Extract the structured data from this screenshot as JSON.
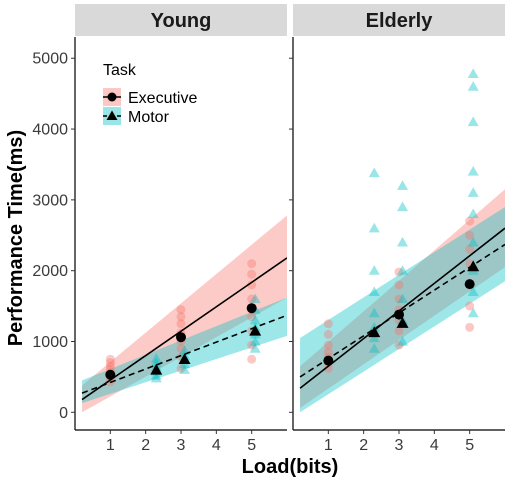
{
  "chart_data": {
    "type": "scatter",
    "x_label": "Load(bits)",
    "y_label": "Performance Time(ms)",
    "x_ticks": [
      1,
      2,
      3,
      4,
      5
    ],
    "y_ticks": [
      0,
      1000,
      2000,
      3000,
      4000,
      5000
    ],
    "x_range": [
      0,
      6
    ],
    "y_range": [
      -250,
      5300
    ],
    "legend": {
      "title": "Task",
      "position": "top-left",
      "entries": [
        {
          "label": "Executive",
          "shape": "circle",
          "color": "#F8766D"
        },
        {
          "label": "Motor",
          "shape": "triangle",
          "color": "#00BFC4"
        }
      ]
    },
    "panels": [
      {
        "label": "Young",
        "series": [
          {
            "name": "Executive",
            "means": [
              [
                1,
                530
              ],
              [
                3,
                1060
              ],
              [
                5,
                1470
              ]
            ],
            "fit_line": [
              [
                0.2,
                180
              ],
              [
                6,
                2180
              ]
            ],
            "ci_band": {
              "x": [
                0.2,
                6
              ],
              "upper": [
                380,
                2780
              ],
              "lower": [
                0,
                1620
              ]
            },
            "raw_points": [
              [
                1,
                430
              ],
              [
                1,
                480
              ],
              [
                1,
                520
              ],
              [
                1,
                560
              ],
              [
                1,
                600
              ],
              [
                1,
                650
              ],
              [
                1,
                700
              ],
              [
                1,
                750
              ],
              [
                3,
                620
              ],
              [
                3,
                780
              ],
              [
                3,
                900
              ],
              [
                3,
                1000
              ],
              [
                3,
                1120
              ],
              [
                3,
                1250
              ],
              [
                3,
                1350
              ],
              [
                3,
                1450
              ],
              [
                5,
                750
              ],
              [
                5,
                950
              ],
              [
                5,
                1150
              ],
              [
                5,
                1350
              ],
              [
                5,
                1600
              ],
              [
                5,
                1800
              ],
              [
                5,
                1950
              ],
              [
                5,
                2100
              ]
            ]
          },
          {
            "name": "Motor",
            "means": [
              [
                2.3,
                600
              ],
              [
                3.1,
                750
              ],
              [
                5.1,
                1150
              ]
            ],
            "fit_line": [
              [
                0.2,
                270
              ],
              [
                6,
                1370
              ]
            ],
            "ci_band": {
              "x": [
                0.2,
                6
              ],
              "upper": [
                450,
                1620
              ],
              "lower": [
                130,
                1080
              ]
            },
            "raw_points": [
              [
                2.3,
                480
              ],
              [
                2.3,
                520
              ],
              [
                2.3,
                580
              ],
              [
                2.3,
                640
              ],
              [
                2.3,
                700
              ],
              [
                2.3,
                760
              ],
              [
                3.1,
                600
              ],
              [
                3.1,
                680
              ],
              [
                3.1,
                740
              ],
              [
                3.1,
                800
              ],
              [
                3.1,
                870
              ],
              [
                5.1,
                900
              ],
              [
                5.1,
                1000
              ],
              [
                5.1,
                1100
              ],
              [
                5.1,
                1200
              ],
              [
                5.1,
                1300
              ],
              [
                5.1,
                1450
              ],
              [
                5.1,
                1600
              ]
            ]
          }
        ]
      },
      {
        "label": "Elderly",
        "series": [
          {
            "name": "Executive",
            "means": [
              [
                1,
                730
              ],
              [
                3,
                1380
              ],
              [
                5,
                1810
              ]
            ],
            "fit_line": [
              [
                0.2,
                340
              ],
              [
                6,
                2600
              ]
            ],
            "ci_band": {
              "x": [
                0.2,
                6
              ],
              "upper": [
                650,
                3150
              ],
              "lower": [
                60,
                2050
              ]
            },
            "raw_points": [
              [
                1,
                620
              ],
              [
                1,
                700
              ],
              [
                1,
                780
              ],
              [
                1,
                850
              ],
              [
                1,
                950
              ],
              [
                1,
                1100
              ],
              [
                1,
                1250
              ],
              [
                3,
                950
              ],
              [
                3,
                1150
              ],
              [
                3,
                1300
              ],
              [
                3,
                1450
              ],
              [
                3,
                1600
              ],
              [
                3,
                1800
              ],
              [
                3,
                1980
              ],
              [
                5,
                1200
              ],
              [
                5,
                1500
              ],
              [
                5,
                1800
              ],
              [
                5,
                2100
              ],
              [
                5,
                2300
              ],
              [
                5,
                2500
              ],
              [
                5,
                2700
              ]
            ]
          },
          {
            "name": "Motor",
            "means": [
              [
                2.3,
                1130
              ],
              [
                3.1,
                1260
              ],
              [
                5.1,
                2060
              ]
            ],
            "fit_line": [
              [
                0.2,
                500
              ],
              [
                6,
                2370
              ]
            ],
            "ci_band": {
              "x": [
                0.2,
                6
              ],
              "upper": [
                1050,
                2900
              ],
              "lower": [
                0,
                1850
              ]
            },
            "raw_points": [
              [
                2.3,
                900
              ],
              [
                2.3,
                1050
              ],
              [
                2.3,
                1200
              ],
              [
                2.3,
                1400
              ],
              [
                2.3,
                1700
              ],
              [
                2.3,
                2000
              ],
              [
                2.3,
                2600
              ],
              [
                2.3,
                3380
              ],
              [
                3.1,
                1000
              ],
              [
                3.1,
                1300
              ],
              [
                3.1,
                1600
              ],
              [
                3.1,
                2000
              ],
              [
                3.1,
                2400
              ],
              [
                3.1,
                2900
              ],
              [
                3.1,
                3200
              ],
              [
                5.1,
                1400
              ],
              [
                5.1,
                1700
              ],
              [
                5.1,
                2000
              ],
              [
                5.1,
                2400
              ],
              [
                5.1,
                2800
              ],
              [
                5.1,
                3100
              ],
              [
                5.1,
                3400
              ],
              [
                5.1,
                4100
              ],
              [
                5.1,
                4600
              ],
              [
                5.1,
                4780
              ]
            ]
          }
        ]
      }
    ]
  }
}
